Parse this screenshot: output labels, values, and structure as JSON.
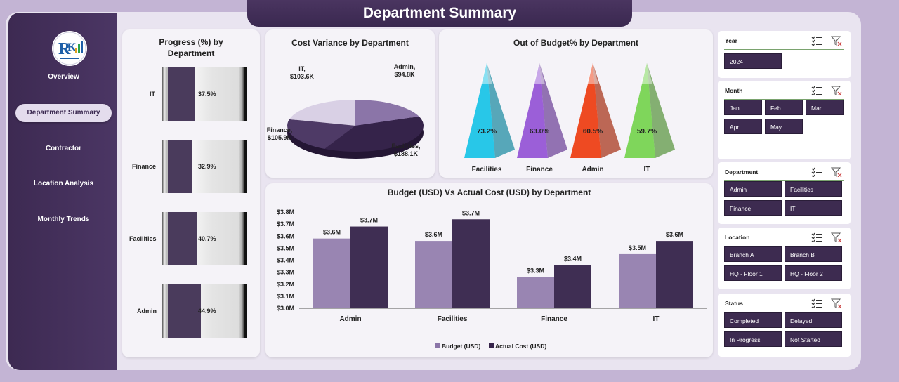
{
  "header": {
    "title": "Department Summary"
  },
  "sidebar": {
    "items": [
      {
        "label": "Overview"
      },
      {
        "label": "Department Summary"
      },
      {
        "label": "Contractor"
      },
      {
        "label": "Location Analysis"
      },
      {
        "label": "Monthly Trends"
      }
    ],
    "active_index": 1
  },
  "progress": {
    "title_line1": "Progress (%) by",
    "title_line2": "Department",
    "rows": [
      {
        "dept": "IT",
        "value": 37.5,
        "label": "37.5%"
      },
      {
        "dept": "Finance",
        "value": 32.9,
        "label": "32.9%"
      },
      {
        "dept": "Facilities",
        "value": 40.7,
        "label": "40.7%"
      },
      {
        "dept": "Admin",
        "value": 44.9,
        "label": "44.9%"
      }
    ],
    "fill_color": "#4a3b5c"
  },
  "chart_data": [
    {
      "type": "pie",
      "title": "Cost Variance by Department",
      "slices": [
        {
          "name": "Admin",
          "value": 94.8,
          "label_name": "Admin,",
          "label_value": "$94.8K",
          "color": "#8b75a8"
        },
        {
          "name": "Facilities",
          "value": 188.1,
          "label_name": "Facilities,",
          "label_value": "$188.1K",
          "color": "#35234a"
        },
        {
          "name": "Finance",
          "value": 105.9,
          "label_name": "Finance,",
          "label_value": "$105.9K",
          "color": "#4e3a66"
        },
        {
          "name": "IT",
          "value": 103.6,
          "label_name": "IT,",
          "label_value": "$103.6K",
          "color": "#d9d0e5"
        }
      ]
    },
    {
      "type": "bar",
      "title": "Out of Budget% by Department",
      "categories": [
        "Facilities",
        "Finance",
        "Admin",
        "IT"
      ],
      "values": [
        73.2,
        63.0,
        60.5,
        59.7
      ],
      "labels": [
        "73.2%",
        "63.0%",
        "60.5%",
        "59.7%"
      ],
      "colors": [
        "#28c7e8",
        "#9b5fd8",
        "#ee4a22",
        "#7fd65b"
      ]
    },
    {
      "type": "bar",
      "title": "Budget (USD) Vs Actual Cost (USD) by Department",
      "categories": [
        "Admin",
        "Facilities",
        "Finance",
        "IT"
      ],
      "ylim": [
        3.0,
        3.8
      ],
      "yticks": [
        "$3.0M",
        "$3.1M",
        "$3.2M",
        "$3.3M",
        "$3.4M",
        "$3.5M",
        "$3.6M",
        "$3.7M",
        "$3.8M"
      ],
      "series": [
        {
          "name": "Budget (USD)",
          "values": [
            3.58,
            3.56,
            3.26,
            3.45
          ],
          "labels": [
            "$3.6M",
            "$3.6M",
            "$3.3M",
            "$3.5M"
          ],
          "color": "#8b75a8"
        },
        {
          "name": "Actual Cost (USD)",
          "values": [
            3.68,
            3.74,
            3.36,
            3.56
          ],
          "labels": [
            "$3.7M",
            "$3.7M",
            "$3.4M",
            "$3.6M"
          ],
          "color": "#35234a"
        }
      ]
    }
  ],
  "slicers": {
    "year": {
      "title": "Year",
      "options": [
        "2024"
      ]
    },
    "month": {
      "title": "Month",
      "options": [
        "Jan",
        "Feb",
        "Mar",
        "Apr",
        "May"
      ]
    },
    "department": {
      "title": "Department",
      "options": [
        "Admin",
        "Facilities",
        "Finance",
        "IT"
      ]
    },
    "location": {
      "title": "Location",
      "options": [
        "Branch A",
        "Branch B",
        "HQ - Floor 1",
        "HQ - Floor 2"
      ]
    },
    "status": {
      "title": "Status",
      "options": [
        "Completed",
        "Delayed",
        "In Progress",
        "Not Started"
      ]
    }
  },
  "icons": {
    "multiselect": "multi-select-icon",
    "clear_filter": "clear-filter-icon",
    "logo": "logo-icon"
  }
}
